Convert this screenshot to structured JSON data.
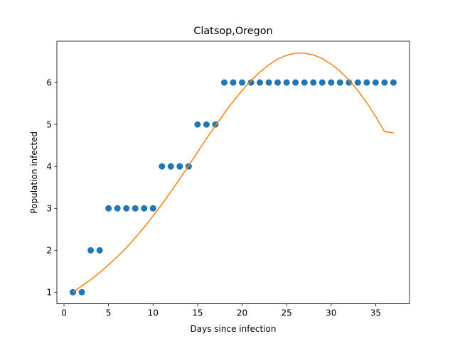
{
  "chart_data": {
    "type": "scatter",
    "title": "Clatsop,Oregon",
    "xlabel": "Days since infection",
    "ylabel": "Population infected",
    "xlim": [
      -0.8,
      38.8
    ],
    "ylim": [
      0.725,
      6.985
    ],
    "xticks": [
      0,
      5,
      10,
      15,
      20,
      25,
      30,
      35
    ],
    "yticks": [
      1,
      2,
      3,
      4,
      5,
      6
    ],
    "grid": false,
    "legend": "none",
    "colors": {
      "points": "#1f77b4",
      "fit": "#ff7f0e"
    },
    "series": [
      {
        "kind": "scatter",
        "x": [
          1,
          2,
          3,
          4,
          5,
          6,
          7,
          8,
          9,
          10,
          11,
          12,
          13,
          14,
          15,
          16,
          17,
          18,
          19,
          20,
          21,
          22,
          23,
          24,
          25,
          26,
          27,
          28,
          29,
          30,
          31,
          32,
          33,
          34,
          35,
          36,
          37
        ],
        "y": [
          1,
          1,
          2,
          2,
          3,
          3,
          3,
          3,
          3,
          3,
          4,
          4,
          4,
          4,
          5,
          5,
          5,
          6,
          6,
          6,
          6,
          6,
          6,
          6,
          6,
          6,
          6,
          6,
          6,
          6,
          6,
          6,
          6,
          6,
          6,
          6,
          6
        ]
      },
      {
        "kind": "line",
        "x": [
          1,
          2,
          3,
          4,
          5,
          6,
          7,
          8,
          9,
          10,
          11,
          12,
          13,
          14,
          15,
          16,
          17,
          18,
          19,
          20,
          21,
          22,
          23,
          24,
          25,
          26,
          27,
          28,
          29,
          30,
          31,
          32,
          33,
          34,
          35,
          36,
          37
        ],
        "y": [
          1.0,
          1.15,
          1.3,
          1.47,
          1.65,
          1.85,
          2.06,
          2.3,
          2.55,
          2.82,
          3.1,
          3.4,
          3.7,
          4.02,
          4.34,
          4.66,
          4.97,
          5.27,
          5.55,
          5.81,
          6.05,
          6.25,
          6.42,
          6.56,
          6.65,
          6.7,
          6.7,
          6.66,
          6.57,
          6.44,
          6.27,
          6.06,
          5.81,
          5.52,
          5.19,
          4.83,
          4.8
        ]
      }
    ]
  }
}
